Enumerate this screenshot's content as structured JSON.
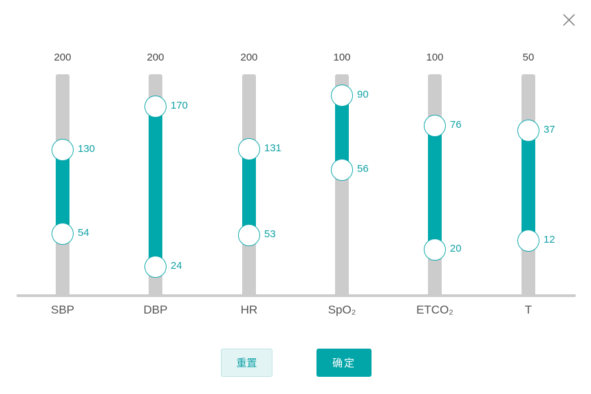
{
  "dialog": {
    "close_icon": "close-icon"
  },
  "sliders": [
    {
      "key": "sbp",
      "label": "SBP",
      "max": "200",
      "upper": "130",
      "lower": "54"
    },
    {
      "key": "dbp",
      "label": "DBP",
      "max": "200",
      "upper": "170",
      "lower": "24"
    },
    {
      "key": "hr",
      "label": "HR",
      "max": "200",
      "upper": "131",
      "lower": "53"
    },
    {
      "key": "spo2",
      "label": "SpO₂",
      "max": "100",
      "upper": "90",
      "lower": "56"
    },
    {
      "key": "etco2",
      "label": "ETCO₂",
      "max": "100",
      "upper": "76",
      "lower": "20"
    },
    {
      "key": "t",
      "label": "T",
      "max": "50",
      "upper": "37",
      "lower": "12"
    }
  ],
  "buttons": {
    "reset_label": "重置",
    "confirm_label": "确定"
  },
  "colors": {
    "accent": "#02a9ac",
    "track": "#cccccc",
    "reset_bg": "#e3f4f5"
  }
}
